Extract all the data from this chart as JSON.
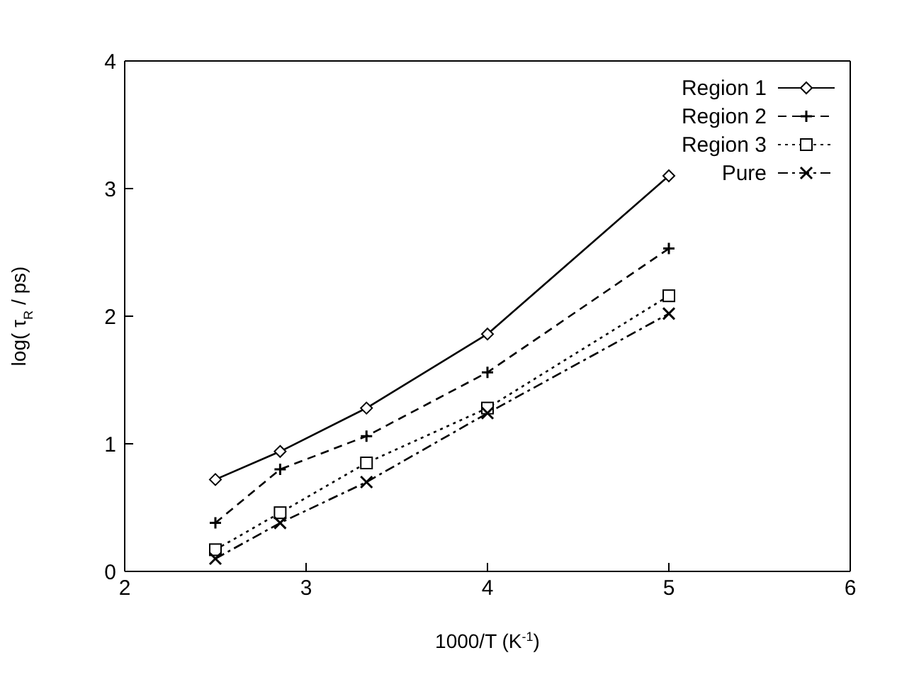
{
  "chart_data": {
    "type": "line",
    "xlabel": "1000/T (K$^{-1}$)",
    "ylabel": "log( τ$_{R}$ / ps)",
    "x": [
      2.5,
      2.857,
      3.333,
      4,
      5
    ],
    "series": [
      {
        "name": "Region 1",
        "color": "#000000",
        "marker": "diamond",
        "line_style": "solid",
        "values": [
          0.72,
          0.94,
          1.28,
          1.86,
          3.1
        ]
      },
      {
        "name": "Region 2",
        "color": "#000000",
        "marker": "cross",
        "line_style": "dashed",
        "values": [
          0.38,
          0.8,
          1.06,
          1.56,
          2.53
        ]
      },
      {
        "name": "Region 3",
        "color": "#000000",
        "marker": "square",
        "line_style": "dotted",
        "values": [
          0.17,
          0.46,
          0.85,
          1.28,
          2.16
        ]
      },
      {
        "name": "Pure",
        "color": "#000000",
        "marker": "x",
        "line_style": "dashdot",
        "values": [
          0.1,
          0.38,
          0.7,
          1.24,
          2.02
        ]
      }
    ],
    "xlim": [
      2,
      6
    ],
    "xticks": [
      2,
      3,
      4,
      5,
      6
    ],
    "ylim": [
      0,
      4
    ],
    "yticks": [
      0,
      1,
      2,
      3,
      4
    ],
    "grid": false,
    "legend": "top right"
  }
}
